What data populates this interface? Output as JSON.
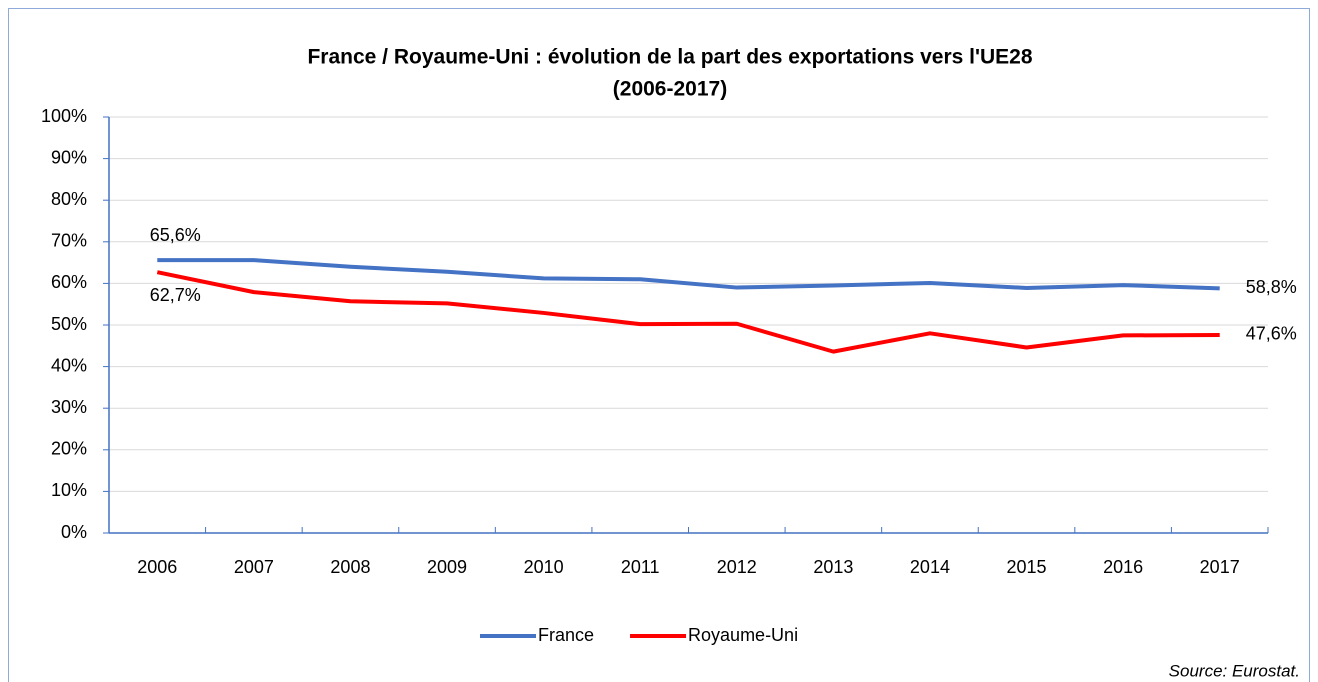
{
  "chart_data": {
    "type": "line",
    "title": "France / Royaume-Uni : évolution de la part des exportations vers l'UE28",
    "subtitle": "(2006-2017)",
    "categories": [
      "2006",
      "2007",
      "2008",
      "2009",
      "2010",
      "2011",
      "2012",
      "2013",
      "2014",
      "2015",
      "2016",
      "2017"
    ],
    "series": [
      {
        "name": "France",
        "color": "#4472c4",
        "values": [
          65.6,
          65.6,
          64.0,
          62.8,
          61.2,
          61.0,
          59.0,
          59.5,
          60.1,
          58.9,
          59.6,
          58.8
        ],
        "value_labels": [
          "65,6%",
          null,
          null,
          null,
          null,
          null,
          null,
          null,
          null,
          null,
          null,
          "58,8%"
        ]
      },
      {
        "name": "Royaume-Uni",
        "color": "#ff0000",
        "values": [
          62.7,
          57.9,
          55.7,
          55.2,
          52.9,
          50.2,
          50.3,
          43.6,
          48.0,
          44.6,
          47.5,
          47.6
        ],
        "value_labels": [
          "62,7%",
          null,
          null,
          null,
          null,
          null,
          null,
          null,
          null,
          null,
          null,
          "47,6%"
        ]
      }
    ],
    "ylim": [
      0,
      100
    ],
    "yticks": [
      {
        "value": 0,
        "label": "0%"
      },
      {
        "value": 10,
        "label": "10%"
      },
      {
        "value": 20,
        "label": "20%"
      },
      {
        "value": 30,
        "label": "30%"
      },
      {
        "value": 40,
        "label": "40%"
      },
      {
        "value": 50,
        "label": "50%"
      },
      {
        "value": 60,
        "label": "60%"
      },
      {
        "value": 70,
        "label": "70%"
      },
      {
        "value": 80,
        "label": "80%"
      },
      {
        "value": 90,
        "label": "90%"
      },
      {
        "value": 100,
        "label": "100%"
      }
    ],
    "grid": true,
    "legend": "bottom",
    "source": "Source: Eurostat."
  }
}
